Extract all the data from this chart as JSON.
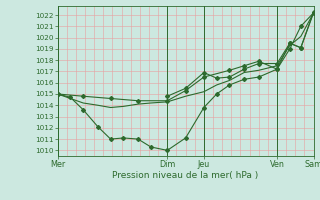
{
  "title": "",
  "xlabel": "Pression niveau de la mer( hPa )",
  "ylim": [
    1009.5,
    1022.8
  ],
  "yticks": [
    1010,
    1011,
    1012,
    1013,
    1014,
    1015,
    1016,
    1017,
    1018,
    1019,
    1020,
    1021,
    1022
  ],
  "background_color": "#cce8e0",
  "vgrid_color": "#e8a0a0",
  "hgrid_color": "#e8a0a0",
  "line_color": "#2d6a2d",
  "day_labels": [
    "Mer",
    "Dim",
    "Jeu",
    "Ven",
    "Sam"
  ],
  "day_x": [
    0,
    60,
    80,
    120,
    140
  ],
  "xlim": [
    0,
    140
  ],
  "series1_x": [
    0,
    7,
    14,
    22,
    29,
    36,
    44,
    51,
    60,
    70,
    80,
    87,
    94,
    102,
    110,
    120,
    127,
    133,
    140
  ],
  "series1_y": [
    1015.0,
    1014.7,
    1013.6,
    1012.1,
    1011.0,
    1011.1,
    1011.0,
    1010.3,
    1010.0,
    1011.1,
    1013.8,
    1015.0,
    1015.8,
    1016.3,
    1016.5,
    1017.2,
    1019.0,
    1021.0,
    1022.2
  ],
  "series2_x": [
    0,
    7,
    14,
    22,
    29,
    36,
    44,
    51,
    60,
    70,
    80,
    87,
    94,
    102,
    110,
    120,
    127,
    133,
    140
  ],
  "series2_y": [
    1015.0,
    1014.6,
    1014.2,
    1014.0,
    1013.8,
    1013.9,
    1014.1,
    1014.2,
    1014.3,
    1014.8,
    1015.2,
    1015.8,
    1016.2,
    1016.9,
    1017.1,
    1017.5,
    1019.3,
    1020.1,
    1022.2
  ],
  "series3_x": [
    0,
    14,
    29,
    44,
    60,
    70,
    80,
    94,
    102,
    110,
    120,
    127,
    133,
    140
  ],
  "series3_y": [
    1015.0,
    1014.8,
    1014.6,
    1014.4,
    1014.4,
    1015.3,
    1016.5,
    1017.1,
    1017.5,
    1017.9,
    1017.2,
    1019.5,
    1019.1,
    1022.2
  ],
  "series4_x": [
    60,
    70,
    80,
    87,
    94,
    102,
    110,
    120,
    127,
    133,
    140
  ],
  "series4_y": [
    1014.8,
    1015.5,
    1016.9,
    1016.4,
    1016.5,
    1017.2,
    1017.7,
    1017.7,
    1019.5,
    1019.1,
    1022.3
  ],
  "num_vgrid": 28,
  "num_hgrid": 13
}
